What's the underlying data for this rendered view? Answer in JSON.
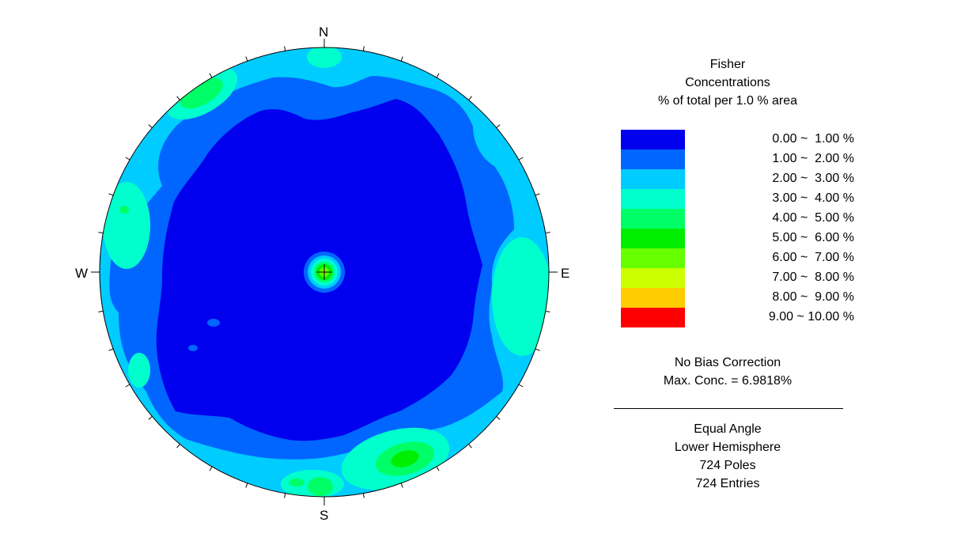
{
  "compass": {
    "n": "N",
    "s": "S",
    "e": "E",
    "w": "W"
  },
  "legend": {
    "title_line1": "Fisher",
    "title_line2": "Concentrations",
    "title_line3": "% of total per 1.0 % area",
    "bins": [
      {
        "label": "0.00 ~  1.00 %",
        "color": "#0000ee"
      },
      {
        "label": "1.00 ~  2.00 %",
        "color": "#0066ff"
      },
      {
        "label": "2.00 ~  3.00 %",
        "color": "#00ccff"
      },
      {
        "label": "3.00 ~  4.00 %",
        "color": "#00ffcc"
      },
      {
        "label": "4.00 ~  5.00 %",
        "color": "#00ff66"
      },
      {
        "label": "5.00 ~  6.00 %",
        "color": "#00ee00"
      },
      {
        "label": "6.00 ~  7.00 %",
        "color": "#66ff00"
      },
      {
        "label": "7.00 ~  8.00 %",
        "color": "#ccff00"
      },
      {
        "label": "8.00 ~  9.00 %",
        "color": "#ffcc00"
      },
      {
        "label": "9.00 ~ 10.00 %",
        "color": "#ff0000"
      }
    ]
  },
  "bias": "No Bias Correction",
  "max_conc": "Max. Conc. = 6.9818%",
  "projection": "Equal Angle",
  "hemisphere": "Lower Hemisphere",
  "poles": "724 Poles",
  "entries": "724 Entries",
  "chart_data": {
    "type": "heatmap",
    "plot": "stereonet",
    "projection": "Equal Angle",
    "hemisphere": "Lower Hemisphere",
    "tick_interval_deg": 10,
    "contour_levels": [
      0,
      1,
      2,
      3,
      4,
      5,
      6,
      7,
      8,
      9,
      10
    ],
    "units": "% of total per 1.0 % area",
    "max_concentration_percent": 6.9818,
    "n_poles": 724,
    "n_entries": 724,
    "concentration_zones": [
      {
        "location": "center",
        "trend_deg": 0,
        "plunge_deg": 90,
        "approx_percent": 6.98
      },
      {
        "location": "south-southeast rim",
        "trend_deg": 160,
        "plunge_deg": 12,
        "approx_percent": 5.0
      },
      {
        "location": "east rim",
        "trend_deg": 92,
        "plunge_deg": 8,
        "approx_percent": 3.5
      },
      {
        "location": "west-northwest rim",
        "trend_deg": 290,
        "plunge_deg": 10,
        "approx_percent": 3.5
      },
      {
        "location": "north-northwest rim",
        "trend_deg": 325,
        "plunge_deg": 8,
        "approx_percent": 4.5
      },
      {
        "location": "south rim",
        "trend_deg": 180,
        "plunge_deg": 5,
        "approx_percent": 4.0
      }
    ]
  }
}
